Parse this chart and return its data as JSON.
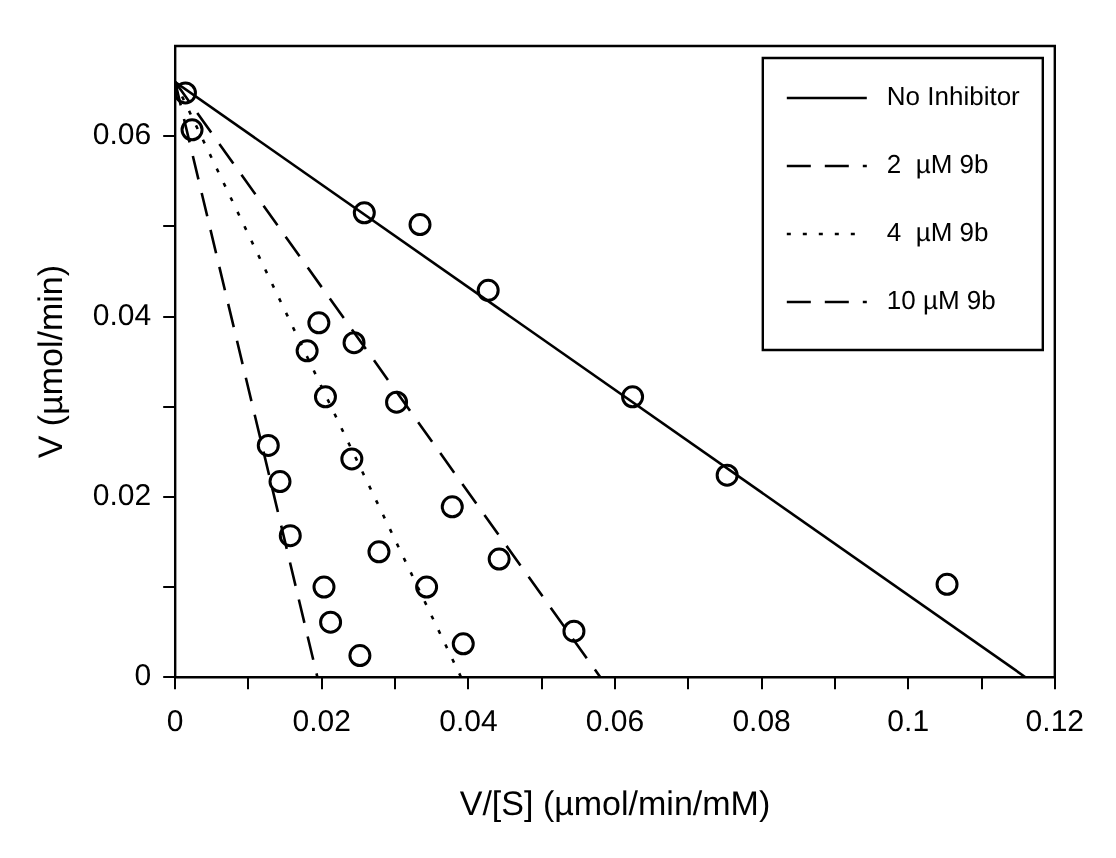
{
  "chart_data": {
    "type": "line",
    "xlabel": "V/[S] (µmol/min/mM)",
    "ylabel": "V (µmol/min)",
    "xlim": [
      0,
      0.12
    ],
    "xticks": [
      0,
      {
        "value": 0.01,
        "label": null
      },
      0.02,
      {
        "value": 0.03,
        "label": null
      },
      0.04,
      {
        "value": 0.05,
        "label": null
      },
      0.06,
      {
        "value": 0.07,
        "label": null
      },
      0.08,
      {
        "value": 0.09,
        "label": null
      },
      0.1,
      {
        "value": 0.11,
        "label": null
      },
      0.12
    ],
    "ylim": [
      0,
      0.07
    ],
    "yticks": [
      0,
      {
        "value": 0.01,
        "label": null
      },
      0.02,
      {
        "value": 0.03,
        "label": null
      },
      0.04,
      {
        "value": 0.05,
        "label": null
      },
      0.06
    ],
    "grid": false,
    "legend": "top right",
    "series": [
      {
        "name": "No Inhibitor",
        "color": "#000000",
        "line_style": "solid",
        "marker": "none",
        "x": [
          0,
          0.116
        ],
        "values": [
          0.066,
          0
        ]
      },
      {
        "name": "2  µM 9b",
        "color": "#000000",
        "line_style": "dashed",
        "marker": "none",
        "x": [
          0,
          0.058
        ],
        "values": [
          0.066,
          0
        ]
      },
      {
        "name": "4  µM 9b",
        "color": "#000000",
        "line_style": "dotted",
        "marker": "none",
        "x": [
          0,
          0.039
        ],
        "values": [
          0.066,
          0
        ]
      },
      {
        "name": "10 µM 9b",
        "color": "#000000",
        "line_style": "dashed",
        "marker": "none",
        "x": [
          0,
          0.0194
        ],
        "values": [
          0.066,
          0
        ]
      },
      {
        "type": "scatter",
        "color": "#000000",
        "marker": "circle",
        "x": [
          0.0258,
          0.0334,
          0.0427,
          0.0624,
          0.0753,
          0.1053,
          0.0244,
          0.0302,
          0.0378,
          0.0442,
          0.0544,
          0.0014,
          0.0196,
          0.018,
          0.0205,
          0.0241,
          0.0278,
          0.0343,
          0.0393,
          0.0023,
          0.0127,
          0.0143,
          0.0157,
          0.0203,
          0.0212,
          0.0252
        ],
        "values": [
          0.0515,
          0.0502,
          0.0429,
          0.0311,
          0.0224,
          0.0103,
          0.0371,
          0.0305,
          0.0189,
          0.0131,
          0.0051,
          0.0648,
          0.0393,
          0.0362,
          0.0311,
          0.0242,
          0.0139,
          0.01,
          0.0037,
          0.0607,
          0.0257,
          0.0217,
          0.0157,
          0.01,
          0.0061,
          0.0024
        ]
      }
    ]
  }
}
